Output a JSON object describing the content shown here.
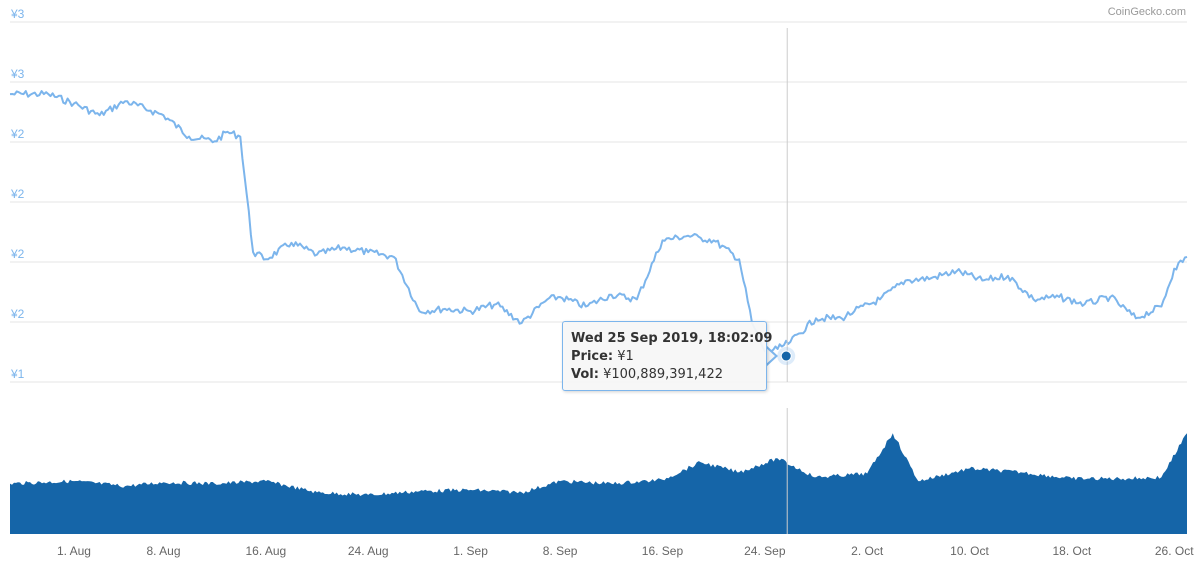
{
  "credit": "CoinGecko.com",
  "colors": {
    "price_line": "#7cb5ec",
    "volume_fill": "#1565a8",
    "axis_label": "#7cb5ec",
    "grid": "#e6e6e6"
  },
  "chart_data": [
    {
      "type": "line",
      "title": "",
      "ylabel": "",
      "x_range": [
        "2019-07-27",
        "2019-10-27"
      ],
      "y_range_labels": [
        "¥1",
        "¥2",
        "¥2",
        "¥2",
        "¥2",
        "¥3",
        "¥3"
      ],
      "y_tick_labels": [
        "¥3",
        "¥3",
        "¥2",
        "¥2",
        "¥2",
        "¥2",
        "¥1"
      ],
      "grid": true,
      "legend": "none",
      "series": [
        {
          "x": [
            "2019-07-27",
            "2019-07-30",
            "2019-08-01",
            "2019-08-03",
            "2019-08-05",
            "2019-08-07",
            "2019-08-08",
            "2019-08-10",
            "2019-08-12",
            "2019-08-13",
            "2019-08-14",
            "2019-08-15",
            "2019-08-16",
            "2019-08-18",
            "2019-08-20",
            "2019-08-22",
            "2019-08-24",
            "2019-08-26",
            "2019-08-28",
            "2019-08-30",
            "2019-09-01",
            "2019-09-03",
            "2019-09-05",
            "2019-09-07",
            "2019-09-08",
            "2019-09-10",
            "2019-09-12",
            "2019-09-14",
            "2019-09-16",
            "2019-09-18",
            "2019-09-19",
            "2019-09-20",
            "2019-09-22",
            "2019-09-23",
            "2019-09-24",
            "2019-09-25",
            "2019-09-26",
            "2019-09-28",
            "2019-09-30",
            "2019-10-01",
            "2019-10-03",
            "2019-10-05",
            "2019-10-07",
            "2019-10-09",
            "2019-10-11",
            "2019-10-13",
            "2019-10-15",
            "2019-10-17",
            "2019-10-19",
            "2019-10-21",
            "2019-10-23",
            "2019-10-25",
            "2019-10-26",
            "2019-10-27"
          ],
          "y": [
            2.47,
            2.47,
            2.43,
            2.38,
            2.44,
            2.4,
            2.38,
            2.29,
            2.27,
            2.31,
            2.29,
            1.8,
            1.77,
            1.84,
            1.79,
            1.82,
            1.8,
            1.78,
            1.55,
            1.56,
            1.55,
            1.58,
            1.5,
            1.6,
            1.61,
            1.57,
            1.62,
            1.6,
            1.85,
            1.87,
            1.86,
            1.85,
            1.77,
            1.5,
            1.38,
            1.39,
            1.42,
            1.52,
            1.52,
            1.55,
            1.6,
            1.68,
            1.69,
            1.72,
            1.68,
            1.7,
            1.6,
            1.61,
            1.58,
            1.61,
            1.52,
            1.57,
            1.73,
            1.78
          ]
        }
      ]
    },
    {
      "type": "area",
      "title": "",
      "ylabel": "",
      "series": [
        {
          "x": [
            "2019-07-27",
            "2019-08-01",
            "2019-08-05",
            "2019-08-08",
            "2019-08-12",
            "2019-08-16",
            "2019-08-20",
            "2019-08-24",
            "2019-08-28",
            "2019-09-01",
            "2019-09-05",
            "2019-09-08",
            "2019-09-12",
            "2019-09-16",
            "2019-09-19",
            "2019-09-22",
            "2019-09-25",
            "2019-09-28",
            "2019-10-02",
            "2019-10-04",
            "2019-10-06",
            "2019-10-10",
            "2019-10-14",
            "2019-10-18",
            "2019-10-22",
            "2019-10-25",
            "2019-10-27"
          ],
          "y": [
            40,
            42,
            38,
            41,
            40,
            42,
            33,
            31,
            34,
            35,
            33,
            42,
            40,
            43,
            57,
            49,
            60,
            45,
            48,
            80,
            42,
            52,
            49,
            44,
            44,
            45,
            80
          ]
        }
      ]
    }
  ],
  "x_axis": {
    "ticks": [
      {
        "label": "1. Aug",
        "date": "2019-08-01"
      },
      {
        "label": "8. Aug",
        "date": "2019-08-08"
      },
      {
        "label": "16. Aug",
        "date": "2019-08-16"
      },
      {
        "label": "24. Aug",
        "date": "2019-08-24"
      },
      {
        "label": "1. Sep",
        "date": "2019-09-01"
      },
      {
        "label": "8. Sep",
        "date": "2019-09-08"
      },
      {
        "label": "16. Sep",
        "date": "2019-09-16"
      },
      {
        "label": "24. Sep",
        "date": "2019-09-24"
      },
      {
        "label": "2. Oct",
        "date": "2019-10-02"
      },
      {
        "label": "10. Oct",
        "date": "2019-10-10"
      },
      {
        "label": "18. Oct",
        "date": "2019-10-18"
      },
      {
        "label": "26. Oct",
        "date": "2019-10-26"
      }
    ]
  },
  "tooltip": {
    "date": "Wed 25 Sep 2019, 18:02:09",
    "price_label": "Price:",
    "price_value": "¥1",
    "vol_label": "Vol:",
    "vol_value": "¥100,889,391,422",
    "hover_x": "2019-09-25T18:02:09",
    "hover_price": 1.36
  }
}
